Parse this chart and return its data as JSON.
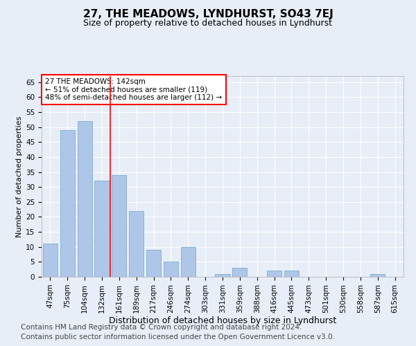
{
  "title": "27, THE MEADOWS, LYNDHURST, SO43 7EJ",
  "subtitle": "Size of property relative to detached houses in Lyndhurst",
  "xlabel": "Distribution of detached houses by size in Lyndhurst",
  "ylabel": "Number of detached properties",
  "categories": [
    "47sqm",
    "75sqm",
    "104sqm",
    "132sqm",
    "161sqm",
    "189sqm",
    "217sqm",
    "246sqm",
    "274sqm",
    "303sqm",
    "331sqm",
    "359sqm",
    "388sqm",
    "416sqm",
    "445sqm",
    "473sqm",
    "501sqm",
    "530sqm",
    "558sqm",
    "587sqm",
    "615sqm"
  ],
  "values": [
    11,
    49,
    52,
    32,
    34,
    22,
    9,
    5,
    10,
    0,
    1,
    3,
    0,
    2,
    2,
    0,
    0,
    0,
    0,
    1,
    0
  ],
  "bar_color": "#aec6e8",
  "bar_edge_color": "#7aadd4",
  "annotation_text": "27 THE MEADOWS: 142sqm\n← 51% of detached houses are smaller (119)\n48% of semi-detached houses are larger (112) →",
  "annotation_box_color": "white",
  "annotation_box_edge_color": "red",
  "vline_color": "red",
  "vline_x": 3.5,
  "ylim": [
    0,
    67
  ],
  "yticks": [
    0,
    5,
    10,
    15,
    20,
    25,
    30,
    35,
    40,
    45,
    50,
    55,
    60,
    65
  ],
  "background_color": "#e8eef7",
  "plot_bg_color": "#e8eef7",
  "footer_line1": "Contains HM Land Registry data © Crown copyright and database right 2024.",
  "footer_line2": "Contains public sector information licensed under the Open Government Licence v3.0.",
  "title_fontsize": 11,
  "subtitle_fontsize": 9,
  "ylabel_fontsize": 8,
  "xlabel_fontsize": 9,
  "tick_fontsize": 7.5,
  "footer_fontsize": 7.5,
  "annotation_fontsize": 7.5
}
